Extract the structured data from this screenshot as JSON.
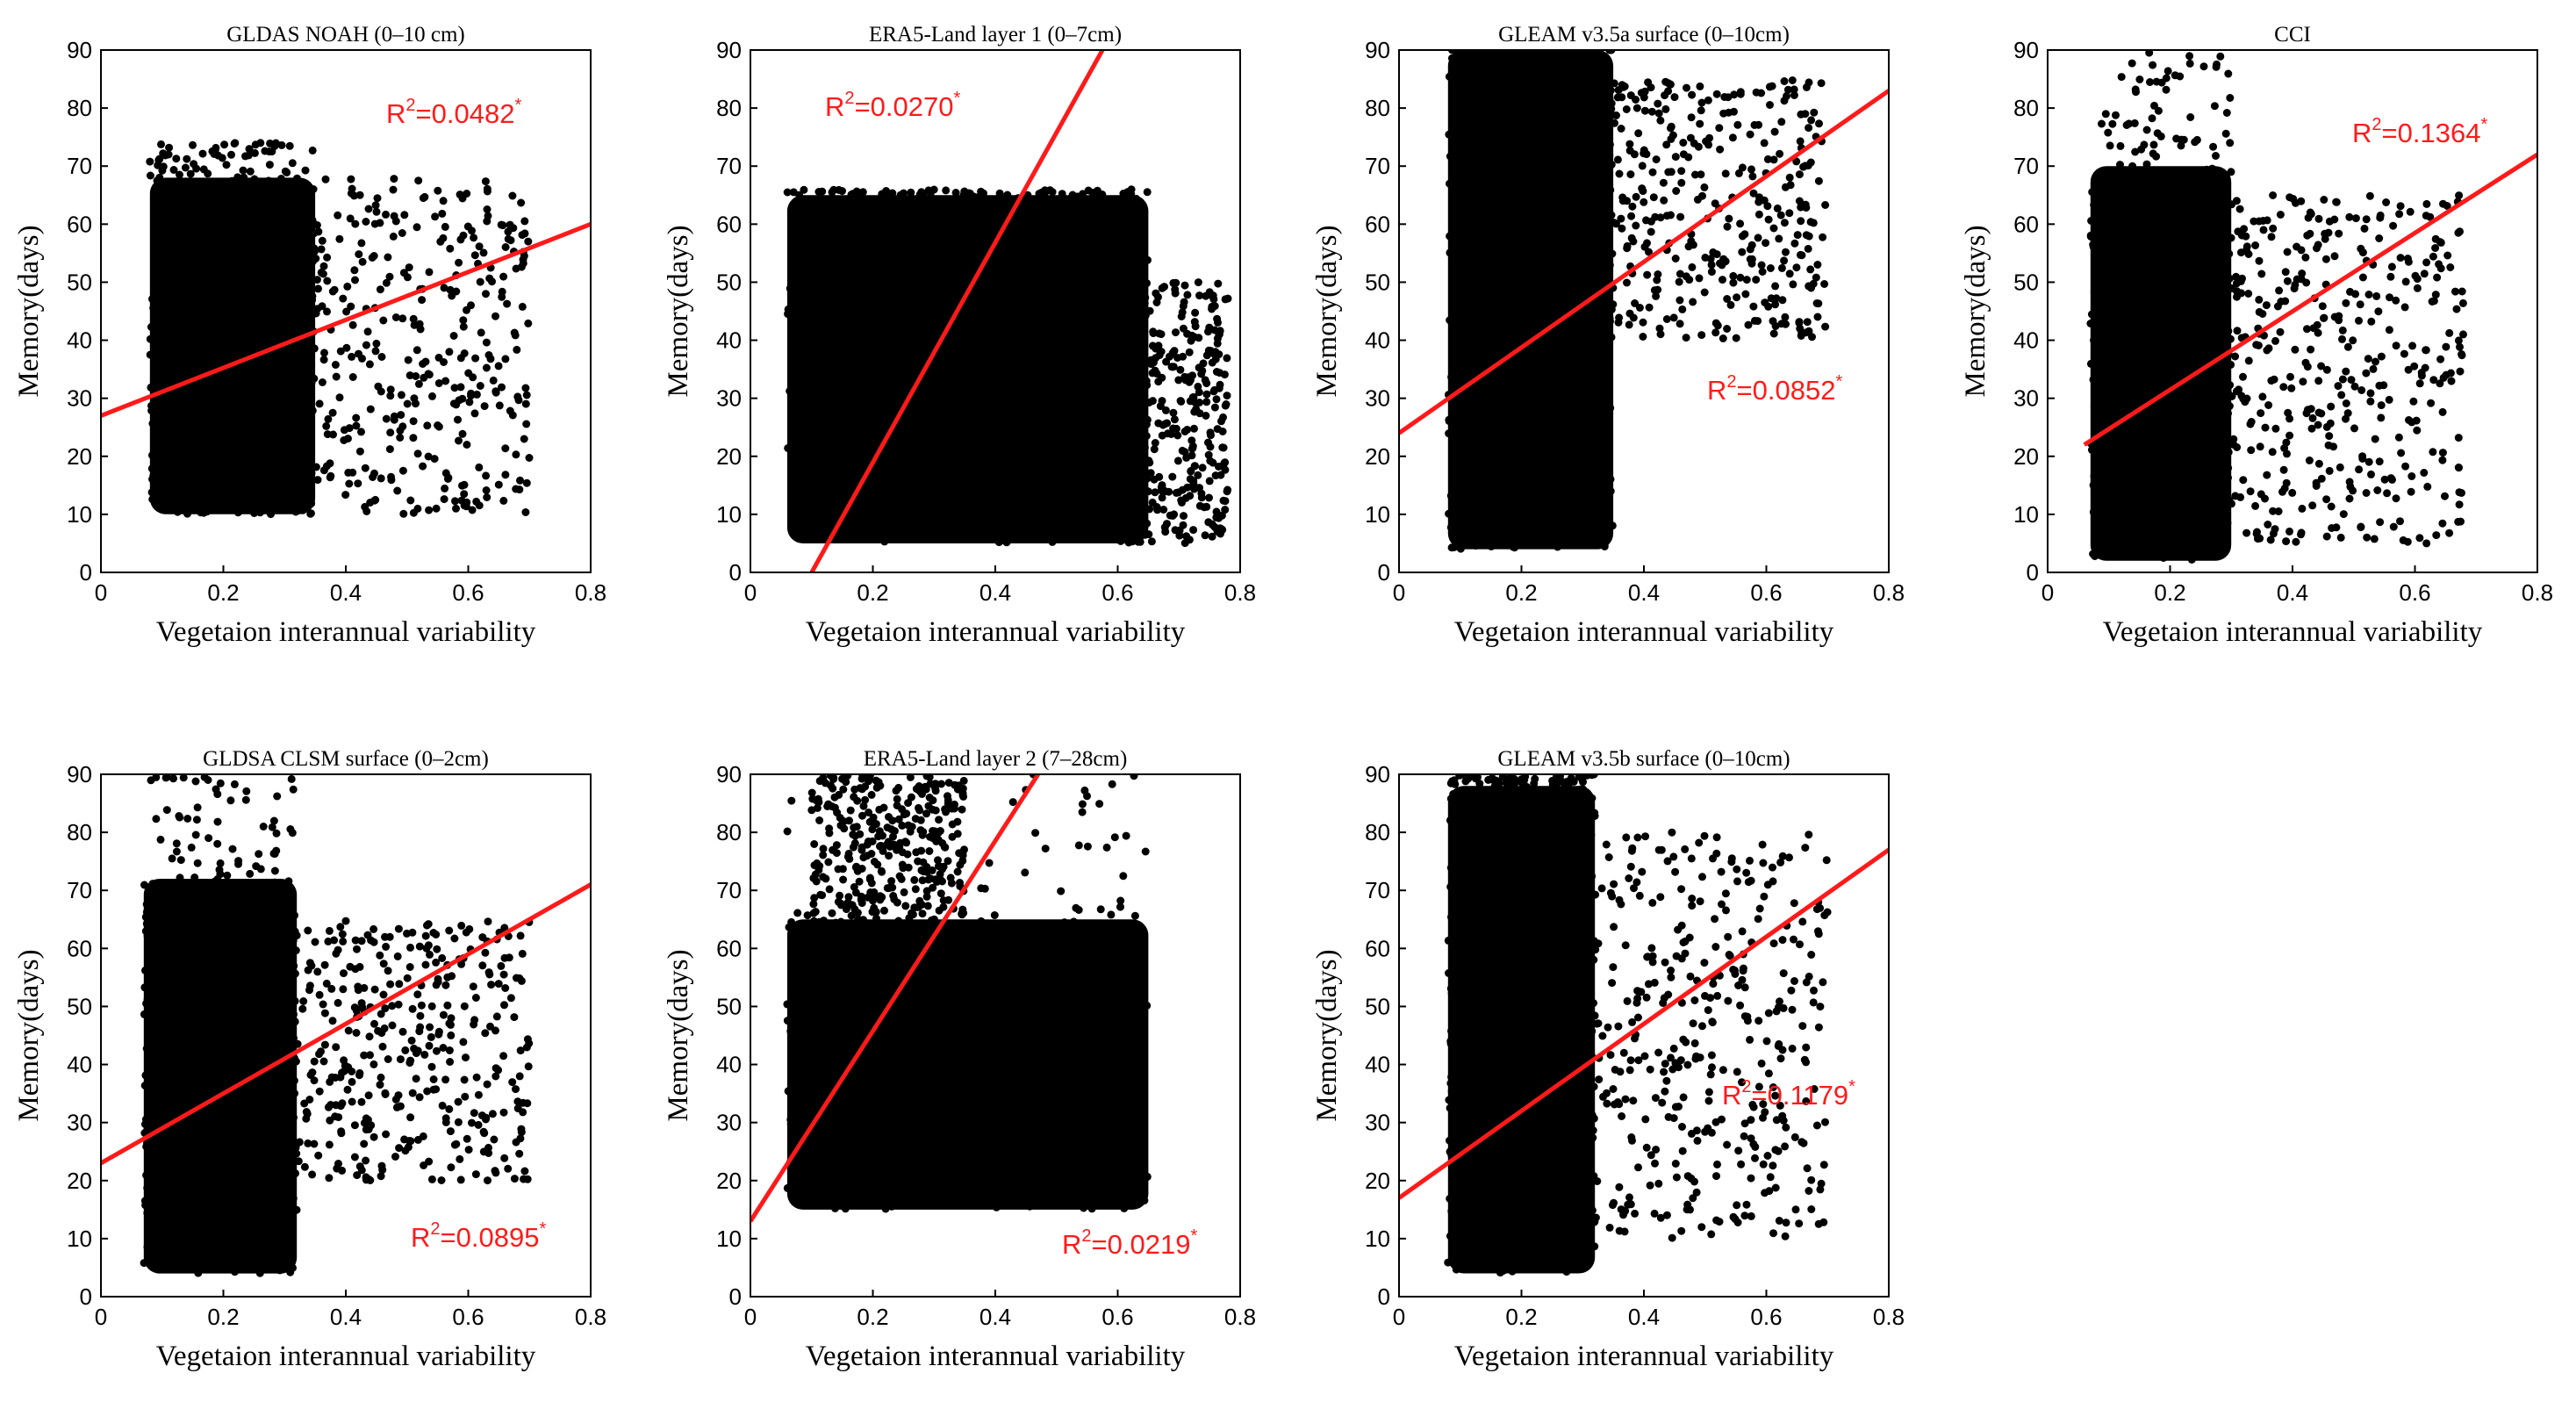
{
  "figure": {
    "xlabel": "Vegetaion interannual variability",
    "ylabel": "Memory(days)"
  },
  "chart_data": [
    {
      "type": "scatter",
      "title": "GLDAS NOAH (0–10 cm)",
      "xlim": [
        0,
        0.8
      ],
      "ylim": [
        0,
        90
      ],
      "xticks": [
        "0",
        "0.2",
        "0.4",
        "0.6",
        "0.8"
      ],
      "yticks": [
        "0",
        "10",
        "20",
        "30",
        "40",
        "50",
        "60",
        "70",
        "80",
        "90"
      ],
      "fit_line": {
        "x": [
          0,
          0.8
        ],
        "y": [
          27,
          60
        ]
      },
      "r2_label": "R²=0.0482*",
      "r2_base": "R",
      "r2_sup": "2",
      "r2_value": "=0.0482",
      "r2_star": "*",
      "cloud": {
        "core_x": [
          0.08,
          0.35
        ],
        "core_y": [
          10,
          68
        ],
        "ext_x": [
          0.3,
          0.7
        ],
        "ext_y": [
          10,
          68
        ],
        "top": 74
      }
    },
    {
      "type": "scatter",
      "title": "ERA5-Land layer 1 (0–7cm)",
      "xlim": [
        0,
        0.8
      ],
      "ylim": [
        0,
        90
      ],
      "xticks": [
        "0",
        "0.2",
        "0.4",
        "0.6",
        "0.8"
      ],
      "yticks": [
        "0",
        "10",
        "20",
        "30",
        "40",
        "50",
        "60",
        "70",
        "80",
        "90"
      ],
      "fit_line": {
        "x": [
          0.1,
          0.575
        ],
        "y": [
          0,
          90
        ]
      },
      "r2_label": "R²=0.0270*",
      "r2_base": "R",
      "r2_sup": "2",
      "r2_value": "=0.0270",
      "r2_star": "*",
      "cloud": {
        "core_x": [
          0.06,
          0.65
        ],
        "core_y": [
          5,
          65
        ],
        "ext_x": [
          0.6,
          0.78
        ],
        "ext_y": [
          5,
          50
        ],
        "top": 66
      }
    },
    {
      "type": "scatter",
      "title": "GLEAM v3.5a surface (0–10cm)",
      "xlim": [
        0,
        0.8
      ],
      "ylim": [
        0,
        90
      ],
      "xticks": [
        "0",
        "0.2",
        "0.4",
        "0.6",
        "0.8"
      ],
      "yticks": [
        "0",
        "10",
        "20",
        "30",
        "40",
        "50",
        "60",
        "70",
        "80",
        "90"
      ],
      "fit_line": {
        "x": [
          0,
          0.8
        ],
        "y": [
          24,
          83
        ]
      },
      "r2_label": "R²=0.0852*",
      "r2_base": "R",
      "r2_sup": "2",
      "r2_value": "=0.0852",
      "r2_star": "*",
      "cloud": {
        "core_x": [
          0.08,
          0.35
        ],
        "core_y": [
          4,
          90
        ],
        "ext_x": [
          0.3,
          0.7
        ],
        "ext_y": [
          40,
          85
        ],
        "top": 90
      }
    },
    {
      "type": "scatter",
      "title": "CCI",
      "xlim": [
        0,
        0.8
      ],
      "ylim": [
        0,
        90
      ],
      "xticks": [
        "0",
        "0.2",
        "0.4",
        "0.6",
        "0.8"
      ],
      "yticks": [
        "0",
        "10",
        "20",
        "30",
        "40",
        "50",
        "60",
        "70",
        "80",
        "90"
      ],
      "fit_line": {
        "x": [
          0.06,
          0.8
        ],
        "y": [
          22,
          72
        ]
      },
      "r2_label": "R²=0.1364*",
      "r2_base": "R",
      "r2_sup": "2",
      "r2_value": "=0.1364",
      "r2_star": "*",
      "cloud": {
        "core_x": [
          0.07,
          0.3
        ],
        "core_y": [
          2,
          70
        ],
        "ext_x": [
          0.3,
          0.68
        ],
        "ext_y": [
          5,
          65
        ],
        "top": 90
      }
    },
    {
      "type": "scatter",
      "title": "GLDSA CLSM surface (0–2cm)",
      "xlim": [
        0,
        0.8
      ],
      "ylim": [
        0,
        90
      ],
      "xticks": [
        "0",
        "0.2",
        "0.4",
        "0.6",
        "0.8"
      ],
      "yticks": [
        "0",
        "10",
        "20",
        "30",
        "40",
        "50",
        "60",
        "70",
        "80",
        "90"
      ],
      "fit_line": {
        "x": [
          0,
          0.8
        ],
        "y": [
          23,
          71
        ]
      },
      "r2_label": "R²=0.0895*",
      "r2_base": "R",
      "r2_sup": "2",
      "r2_value": "=0.0895",
      "r2_star": "*",
      "cloud": {
        "core_x": [
          0.07,
          0.32
        ],
        "core_y": [
          4,
          72
        ],
        "ext_x": [
          0.3,
          0.7
        ],
        "ext_y": [
          20,
          65
        ],
        "top": 90
      }
    },
    {
      "type": "scatter",
      "title": "ERA5-Land layer 2 (7–28cm)",
      "xlim": [
        0,
        0.8
      ],
      "ylim": [
        0,
        90
      ],
      "xticks": [
        "0",
        "0.2",
        "0.4",
        "0.6",
        "0.8"
      ],
      "yticks": [
        "0",
        "10",
        "20",
        "30",
        "40",
        "50",
        "60",
        "70",
        "80",
        "90"
      ],
      "fit_line": {
        "x": [
          0,
          0.47
        ],
        "y": [
          13,
          90
        ]
      },
      "r2_label": "R²=0.0219*",
      "r2_base": "R",
      "r2_sup": "2",
      "r2_value": "=0.0219",
      "r2_star": "*",
      "cloud": {
        "core_x": [
          0.06,
          0.65
        ],
        "core_y": [
          15,
          65
        ],
        "ext_x": [
          0.1,
          0.35
        ],
        "ext_y": [
          60,
          90
        ],
        "top": 90
      }
    },
    {
      "type": "scatter",
      "title": "GLEAM v3.5b surface (0–10cm)",
      "xlim": [
        0,
        0.8
      ],
      "ylim": [
        0,
        90
      ],
      "xticks": [
        "0",
        "0.2",
        "0.4",
        "0.6",
        "0.8"
      ],
      "yticks": [
        "0",
        "10",
        "20",
        "30",
        "40",
        "50",
        "60",
        "70",
        "80",
        "90"
      ],
      "fit_line": {
        "x": [
          0,
          0.8
        ],
        "y": [
          17,
          77
        ]
      },
      "r2_label": "R²=0.1179*",
      "r2_base": "R",
      "r2_sup": "2",
      "r2_value": "=0.1179",
      "r2_star": "*",
      "cloud": {
        "core_x": [
          0.08,
          0.32
        ],
        "core_y": [
          4,
          88
        ],
        "ext_x": [
          0.3,
          0.7
        ],
        "ext_y": [
          10,
          80
        ],
        "top": 90
      }
    }
  ]
}
